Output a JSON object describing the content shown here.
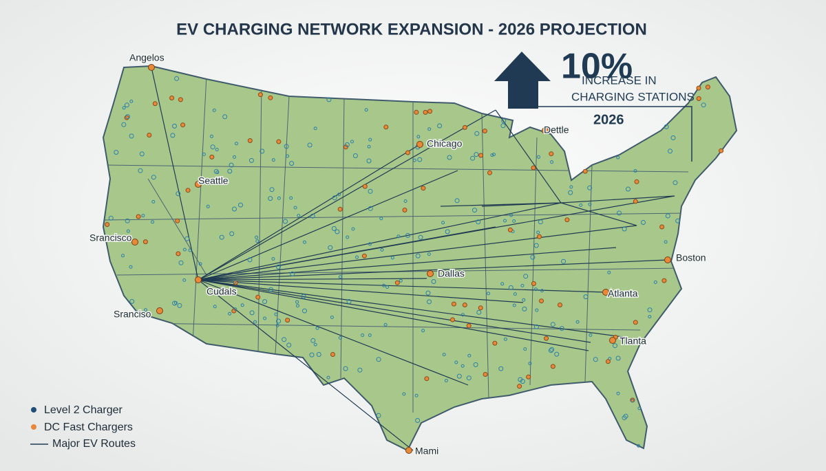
{
  "header": {
    "title": "EV CHARGING NETWORK EXPANSION - 2026 PROJECTION"
  },
  "callout": {
    "value": "10%",
    "line1": "INCREASE IN",
    "line2": "CHARGING STATIONS",
    "year": "2026"
  },
  "cities": [
    {
      "label": "Angelos"
    },
    {
      "label": "Seattle"
    },
    {
      "label": "Chicago"
    },
    {
      "label": "Dettle"
    },
    {
      "label": "Srancisco"
    },
    {
      "label": "Cudals"
    },
    {
      "label": "Sranciso"
    },
    {
      "label": "Dallas"
    },
    {
      "label": "Boston"
    },
    {
      "label": "Atlanta"
    },
    {
      "label": "Tlanta"
    },
    {
      "label": "Mami"
    }
  ],
  "legend": [
    {
      "label": "Level 2 Charger"
    },
    {
      "label": "DC Fast Chargers"
    },
    {
      "label": "Major EV Routes"
    }
  ]
}
